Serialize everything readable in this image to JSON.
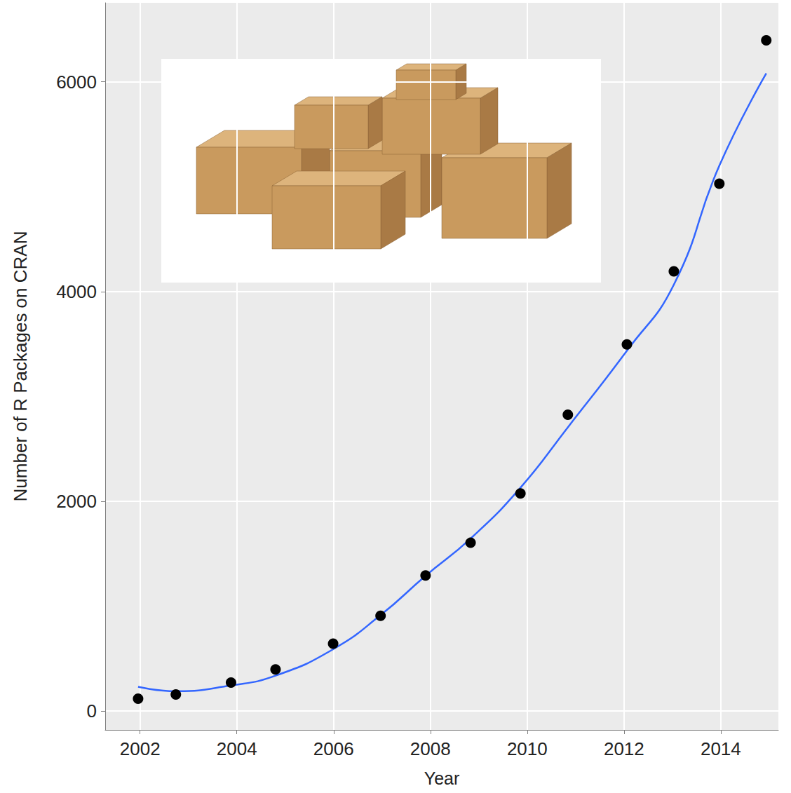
{
  "chart_data": {
    "type": "scatter",
    "x_label": "Year",
    "y_label": "Number of R Packages on CRAN",
    "x": [
      2001.96,
      2002.74,
      2003.88,
      2004.8,
      2005.99,
      2006.97,
      2007.9,
      2008.83,
      2009.86,
      2010.84,
      2012.06,
      2013.03,
      2013.97,
      2014.94
    ],
    "series": [
      {
        "type": "scatter",
        "color": "#000000",
        "marker": "circle",
        "values": [
          119,
          159,
          272,
          398,
          643,
          909,
          1294,
          1605,
          2076,
          2826,
          3496,
          4192,
          5028,
          6395
        ]
      },
      {
        "type": "line",
        "color": "#3366ff",
        "line_style": "solid",
        "values": [
          232,
          190,
          245,
          338,
          590,
          915,
          1290,
          1645,
          2130,
          2706,
          3436,
          4066,
          5200,
          6080
        ]
      }
    ],
    "xlim": [
      2001.28,
      2015.19
    ],
    "xticks": [
      2002,
      2004,
      2006,
      2008,
      2010,
      2012,
      2014
    ],
    "ylim": [
      -179,
      6753
    ],
    "yticks": [
      0,
      2000,
      4000,
      6000
    ],
    "grid": true
  }
}
